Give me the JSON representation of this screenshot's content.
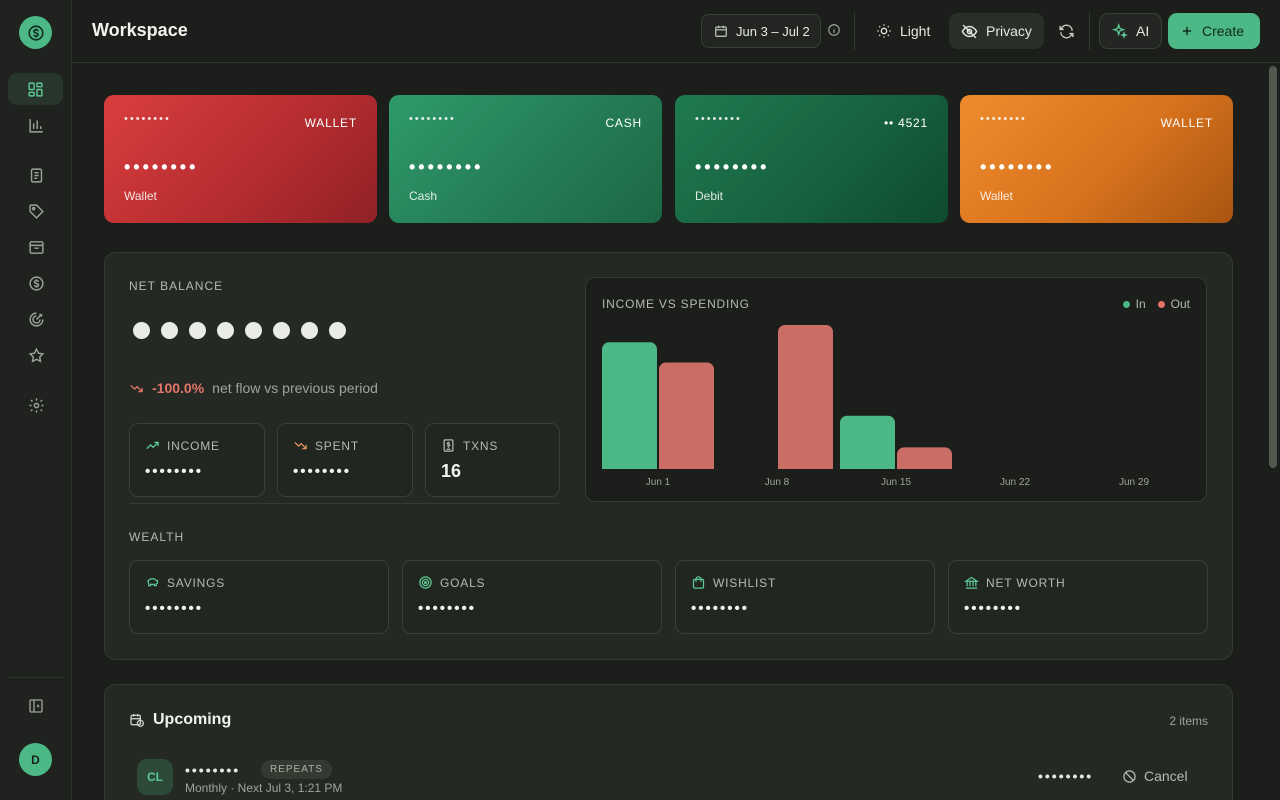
{
  "header": {
    "title": "Workspace",
    "date_range": "Jun 3 – Jul 2",
    "light_label": "Light",
    "privacy_label": "Privacy",
    "ai_label": "AI",
    "create_label": "Create"
  },
  "sidebar": {
    "user_initial": "D",
    "items": [
      "dashboard-icon",
      "chart-icon",
      "receipt-icon",
      "tag-icon",
      "inbox-icon",
      "dollar-icon",
      "goal-icon",
      "star-icon",
      "gear-icon"
    ]
  },
  "cards": [
    {
      "masked": "••••••••",
      "type": "WALLET",
      "balance": "••••••••",
      "name": "Wallet"
    },
    {
      "masked": "••••••••",
      "type": "CASH",
      "balance": "••••••••",
      "name": "Cash"
    },
    {
      "masked": "••••••••",
      "type": "•• 4521",
      "balance": "••••••••",
      "name": "Debit"
    },
    {
      "masked": "••••••••",
      "type": "WALLET",
      "balance": "••••••••",
      "name": "Wallet"
    }
  ],
  "overview": {
    "net_balance_label": "NET BALANCE",
    "trend_pct": "-100.0%",
    "trend_text": "net flow vs previous period",
    "income_label": "INCOME",
    "income_value": "••••••••",
    "spent_label": "SPENT",
    "spent_value": "••••••••",
    "txns_label": "TXNS",
    "txns_value": "16",
    "wealth_label": "WEALTH",
    "savings_label": "SAVINGS",
    "savings_value": "••••••••",
    "goals_label": "GOALS",
    "goals_value": "••••••••",
    "wishlist_label": "WISHLIST",
    "wishlist_value": "••••••••",
    "networth_label": "NET WORTH",
    "networth_value": "••••••••"
  },
  "chart_data": {
    "type": "bar",
    "title": "INCOME VS SPENDING",
    "categories": [
      "Jun 1",
      "Jun 8",
      "Jun 15",
      "Jun 22",
      "Jun 29"
    ],
    "series": [
      {
        "name": "In",
        "color": "#4cb886",
        "values": [
          88,
          0,
          37,
          0,
          0
        ]
      },
      {
        "name": "Out",
        "color": "#c96d65",
        "values": [
          74,
          100,
          15,
          0,
          0
        ]
      }
    ],
    "legend_position": "top-right"
  },
  "upcoming": {
    "title": "Upcoming",
    "count": "2 items",
    "items": [
      {
        "initials": "CL",
        "name": "••••••••",
        "badge": "REPEATS",
        "schedule": "Monthly · Next Jul 3, 1:21 PM",
        "amount": "••••••••",
        "action": "Cancel"
      }
    ]
  }
}
